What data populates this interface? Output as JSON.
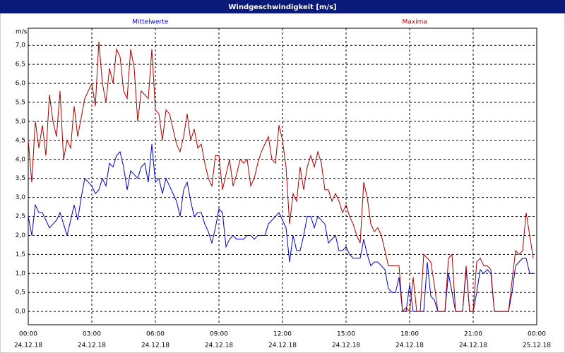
{
  "chart_data": {
    "type": "line",
    "title": "Windgeschwindigkeit [m/s]",
    "y_unit": "m/s",
    "x": [
      0,
      10,
      20,
      30,
      40,
      50,
      60,
      70,
      80,
      90,
      100,
      110,
      120,
      130,
      140,
      150,
      160,
      170,
      180,
      190,
      200,
      210,
      220,
      230,
      240,
      250,
      260,
      270,
      280,
      290,
      300,
      310,
      320,
      330,
      340,
      350,
      360,
      370,
      380,
      390,
      400,
      410,
      420,
      430,
      440,
      450,
      460,
      470,
      480,
      490,
      500,
      510,
      520,
      530,
      540,
      550,
      560,
      570,
      580,
      590,
      600,
      610,
      620,
      630,
      640,
      650,
      660,
      670,
      680,
      690,
      700,
      710,
      720,
      730,
      740,
      750,
      760,
      770,
      780,
      790,
      800,
      810,
      820,
      830,
      840,
      850,
      860,
      870,
      880,
      890,
      900,
      910,
      920,
      930,
      940,
      950,
      960,
      970,
      980,
      990,
      1000,
      1010,
      1020,
      1030,
      1040,
      1050,
      1060,
      1070,
      1080,
      1090,
      1100,
      1110,
      1120,
      1130,
      1140,
      1150,
      1160,
      1170,
      1180,
      1190,
      1200,
      1210,
      1220,
      1230,
      1240,
      1250,
      1260,
      1270,
      1280,
      1290,
      1300,
      1310,
      1320,
      1330,
      1340,
      1350,
      1360,
      1370,
      1380,
      1390,
      1400,
      1410,
      1420,
      1430
    ],
    "series": [
      {
        "name": "Mittelwerte",
        "color": "#0000cc",
        "values": [
          2.5,
          2.0,
          2.8,
          2.6,
          2.6,
          2.4,
          2.2,
          2.3,
          2.4,
          2.6,
          2.3,
          2.0,
          2.4,
          2.8,
          2.4,
          3.0,
          3.5,
          3.4,
          3.3,
          3.1,
          3.2,
          3.5,
          3.3,
          3.9,
          3.8,
          4.1,
          4.2,
          3.8,
          3.2,
          3.7,
          3.6,
          3.5,
          3.8,
          3.9,
          3.4,
          4.4,
          3.4,
          3.5,
          3.1,
          3.5,
          3.3,
          3.1,
          2.9,
          2.5,
          3.2,
          3.4,
          2.9,
          2.5,
          2.6,
          2.6,
          2.3,
          2.1,
          1.8,
          2.2,
          2.7,
          2.6,
          1.7,
          1.9,
          2.0,
          1.9,
          1.9,
          1.9,
          2.0,
          2.0,
          1.9,
          2.0,
          2.0,
          2.0,
          2.3,
          2.4,
          2.5,
          2.6,
          2.4,
          2.2,
          1.3,
          2.0,
          1.6,
          1.6,
          2.0,
          2.5,
          2.5,
          2.2,
          2.5,
          2.4,
          2.3,
          1.8,
          1.9,
          2.0,
          1.6,
          1.6,
          1.7,
          1.5,
          1.4,
          1.4,
          1.4,
          1.9,
          1.5,
          1.2,
          1.3,
          1.3,
          1.2,
          1.1,
          0.6,
          0.5,
          0.5,
          0.9,
          0.0,
          0.0,
          0.7,
          0.0,
          0.0,
          0.0,
          0.0,
          1.3,
          0.4,
          0.3,
          0.0,
          0.0,
          0.0,
          1.0,
          0.5,
          0.0,
          0.0,
          0.0,
          1.1,
          0.0,
          0.0,
          0.5,
          1.1,
          1.0,
          1.1,
          1.0,
          0.0,
          0.0,
          0.0,
          0.0,
          0.0,
          0.5,
          1.2,
          1.3,
          1.4,
          1.4,
          1.0,
          1.0
        ]
      },
      {
        "name": "Maxima",
        "color": "#aa0000",
        "values": [
          4.5,
          3.4,
          5.0,
          4.3,
          4.9,
          4.1,
          5.7,
          5.0,
          4.6,
          5.8,
          4.0,
          4.5,
          4.3,
          5.4,
          4.6,
          5.1,
          5.6,
          5.8,
          6.0,
          5.4,
          7.1,
          6.0,
          5.5,
          6.4,
          6.0,
          6.9,
          6.7,
          5.8,
          5.6,
          6.9,
          6.4,
          5.0,
          5.8,
          5.7,
          5.6,
          6.9,
          5.3,
          5.2,
          4.5,
          5.3,
          5.2,
          4.8,
          4.4,
          4.2,
          4.6,
          5.2,
          4.5,
          4.8,
          4.3,
          4.4,
          3.9,
          3.5,
          3.3,
          4.1,
          4.1,
          3.2,
          3.6,
          4.0,
          3.3,
          3.6,
          4.0,
          3.9,
          4.0,
          3.3,
          3.5,
          3.9,
          4.2,
          4.4,
          4.6,
          4.0,
          3.9,
          4.9,
          4.5,
          3.8,
          2.3,
          3.1,
          2.9,
          3.8,
          3.2,
          3.8,
          4.1,
          3.8,
          4.2,
          3.9,
          3.2,
          3.2,
          2.9,
          3.1,
          2.9,
          2.6,
          2.8,
          2.5,
          2.3,
          2.0,
          1.8,
          3.4,
          3.0,
          2.3,
          2.1,
          2.2,
          2.0,
          1.6,
          1.2,
          1.2,
          1.2,
          1.2,
          0.0,
          0.1,
          0.0,
          0.9,
          0.0,
          0.0,
          1.5,
          1.4,
          1.3,
          0.7,
          0.0,
          0.0,
          0.0,
          1.4,
          1.5,
          0.0,
          0.0,
          0.0,
          1.2,
          0.0,
          0.0,
          1.3,
          1.4,
          1.2,
          1.2,
          1.1,
          0.0,
          0.0,
          0.0,
          0.0,
          0.0,
          0.8,
          1.6,
          1.5,
          1.6,
          2.6,
          2.0,
          1.4
        ]
      }
    ],
    "xlim": [
      0,
      1440
    ],
    "xticks": [
      {
        "value": 0,
        "label": "00:00",
        "date": "24.12.18"
      },
      {
        "value": 180,
        "label": "03:00",
        "date": "24.12.18"
      },
      {
        "value": 360,
        "label": "06:00",
        "date": "24.12.18"
      },
      {
        "value": 540,
        "label": "09:00",
        "date": "24.12.18"
      },
      {
        "value": 720,
        "label": "12:00",
        "date": "24.12.18"
      },
      {
        "value": 900,
        "label": "15:00",
        "date": "24.12.18"
      },
      {
        "value": 1080,
        "label": "18:00",
        "date": "24.12.18"
      },
      {
        "value": 1260,
        "label": "21:00",
        "date": "24.12.18"
      },
      {
        "value": 1440,
        "label": "00:00",
        "date": "25.12.18"
      }
    ],
    "ylim": [
      -0.35,
      7.45
    ],
    "yticks": [
      {
        "value": 0,
        "label": "0,0"
      },
      {
        "value": 0.5,
        "label": "0,5"
      },
      {
        "value": 1,
        "label": "1,0"
      },
      {
        "value": 1.5,
        "label": "1,5"
      },
      {
        "value": 2,
        "label": "2,0"
      },
      {
        "value": 2.5,
        "label": "2,5"
      },
      {
        "value": 3,
        "label": "3,0"
      },
      {
        "value": 3.5,
        "label": "3,5"
      },
      {
        "value": 4,
        "label": "4,0"
      },
      {
        "value": 4.5,
        "label": "4,5"
      },
      {
        "value": 5,
        "label": "5,0"
      },
      {
        "value": 5.5,
        "label": "5,5"
      },
      {
        "value": 6,
        "label": "6,0"
      },
      {
        "value": 6.5,
        "label": "6,5"
      },
      {
        "value": 7,
        "label": "7,0"
      }
    ],
    "grid": true
  }
}
